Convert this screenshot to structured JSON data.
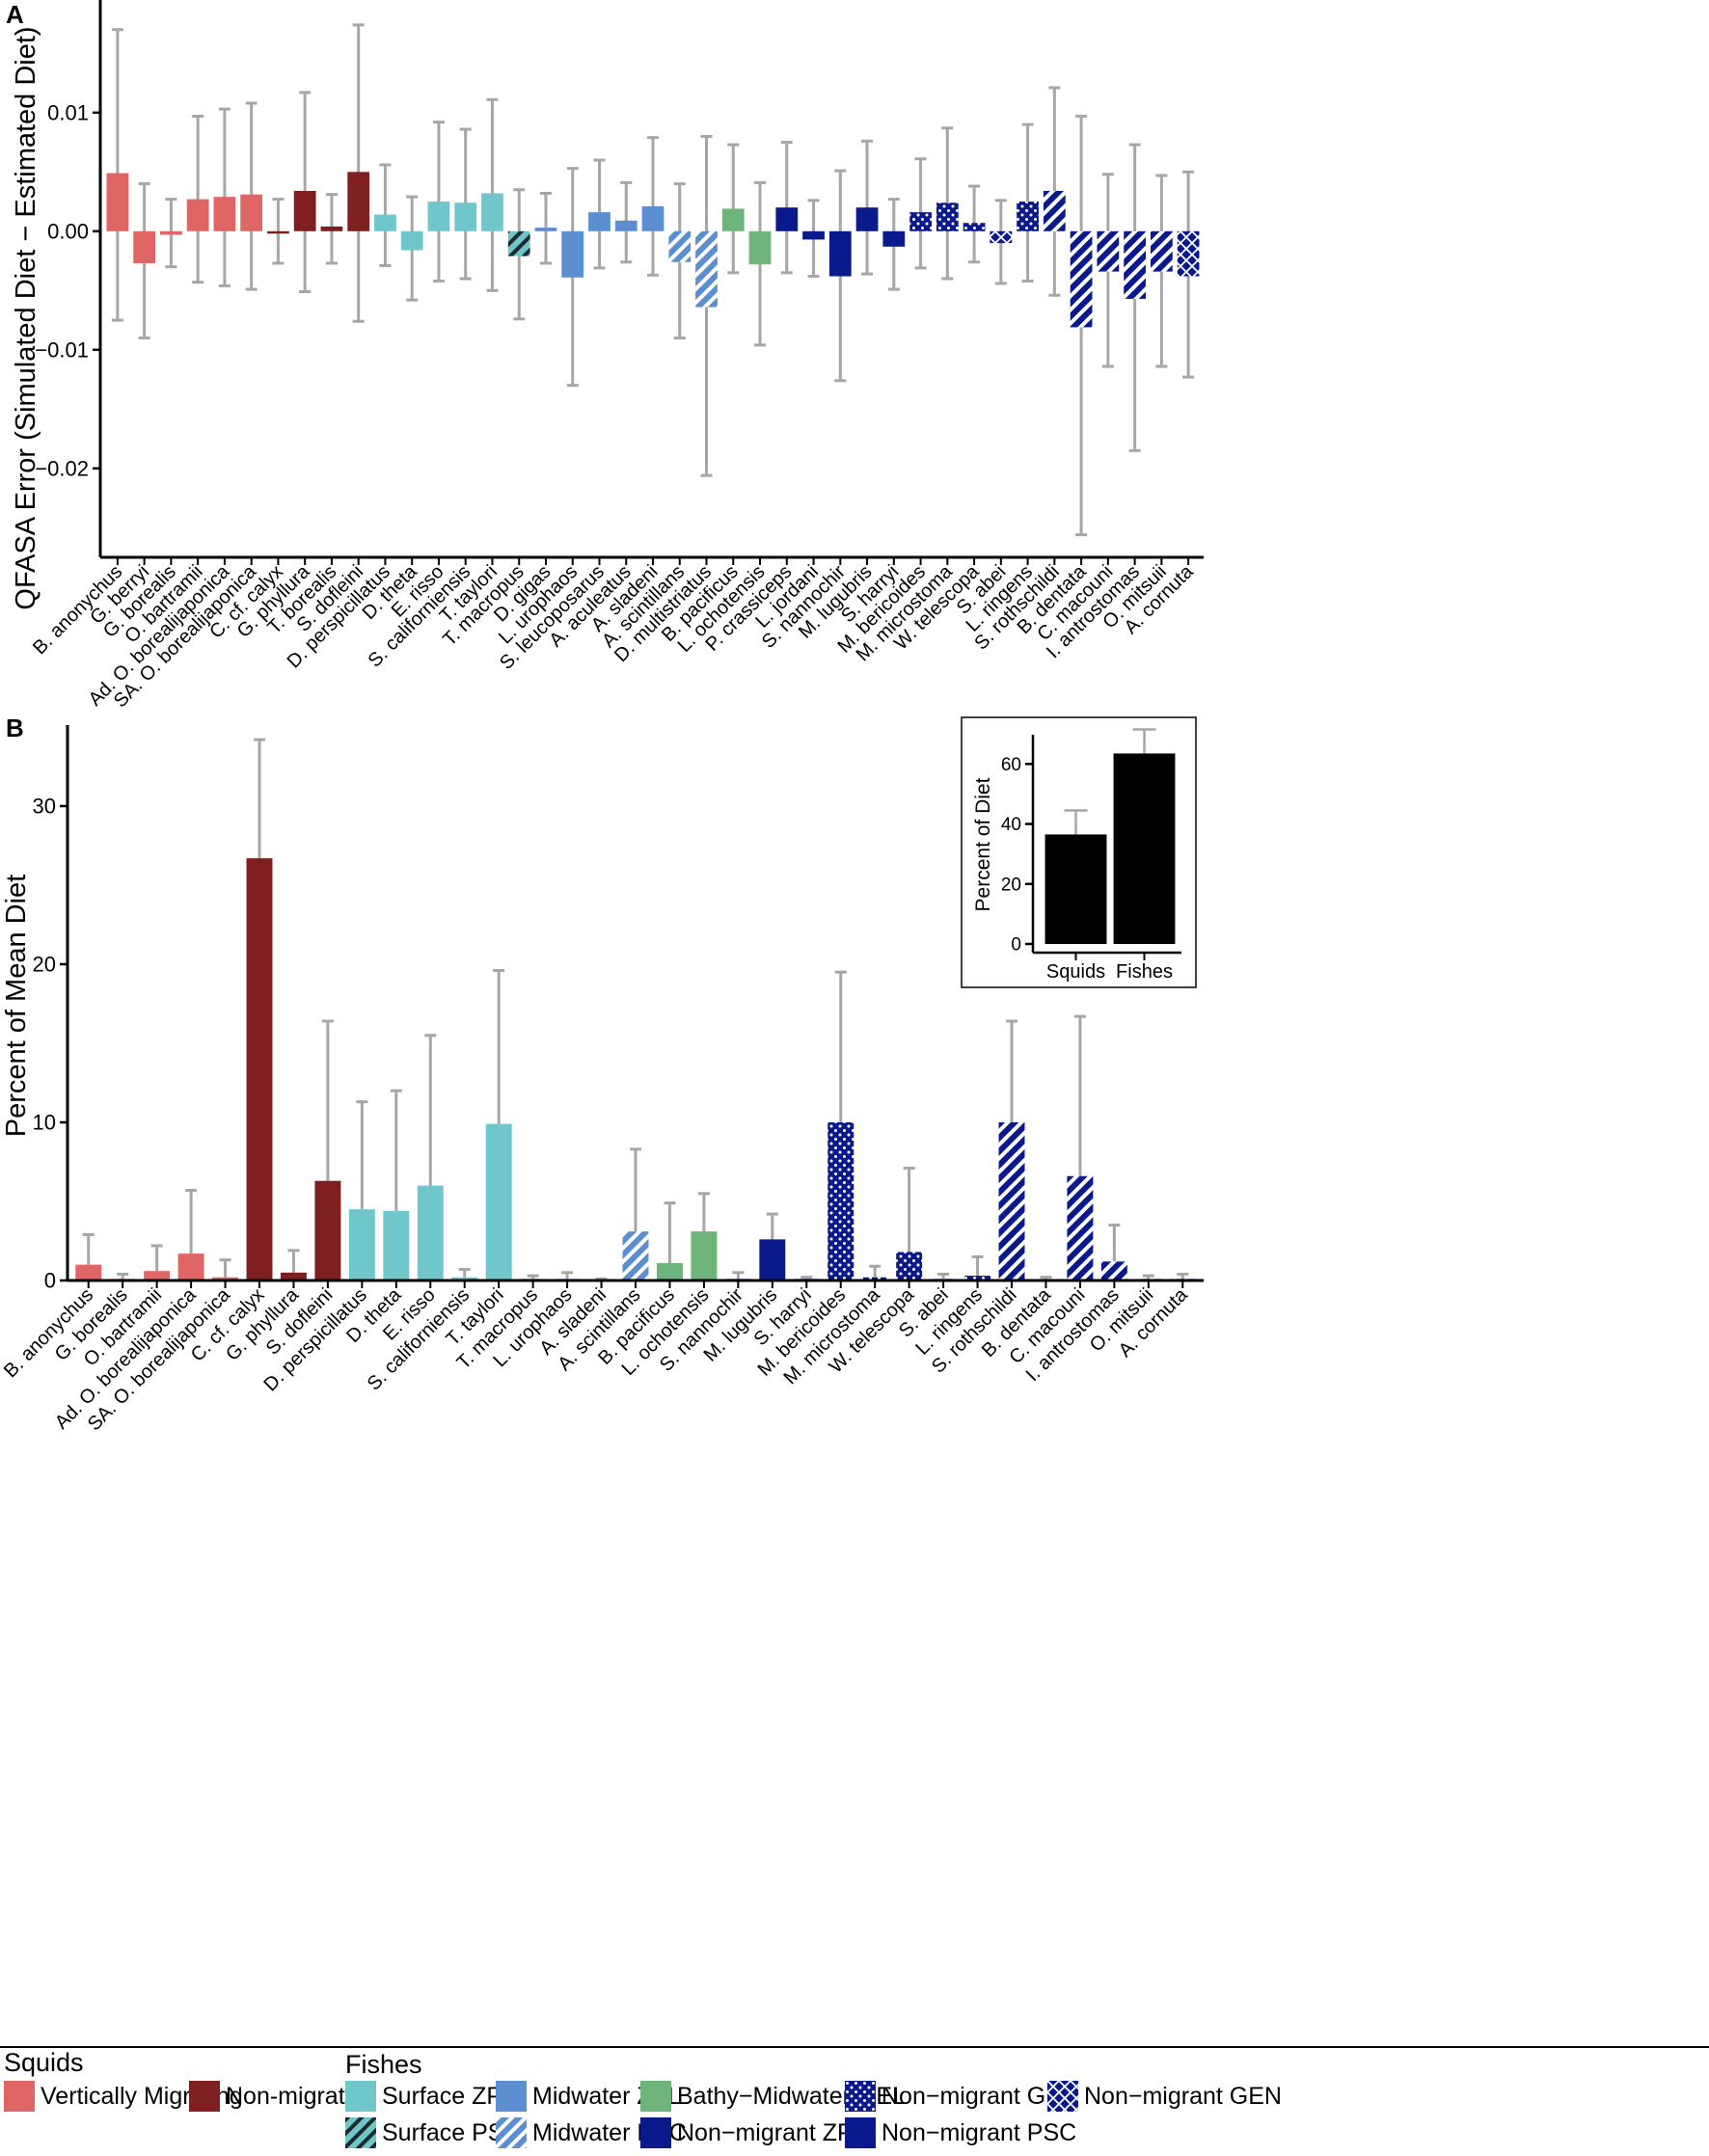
{
  "panel_labels": {
    "a": "A",
    "b": "B"
  },
  "colors": {
    "squid_vm": "#e06666",
    "squid_nm": "#7f1f1f",
    "surface": "#6fc7cc",
    "midwater": "#5b8fd1",
    "bathy": "#6db57a",
    "nonmigrant": "#0a1a8c",
    "errorbar": "#a6a6a6"
  },
  "legend": {
    "squids_title": "Squids",
    "fishes_title": "Fishes",
    "items": {
      "squid_vm": "Vertically Migrating",
      "squid_nm": "Non-migrating",
      "surface_zpl": "Surface ZPL",
      "surface_psc": "Surface PSC",
      "midwater_zpl": "Midwater ZPL",
      "midwater_psc": "Midwater PSC",
      "bathy_gel": "Bathy−Midwater GEL",
      "nonmig_zpl": "Non−migrant ZPL",
      "nonmig_gel": "Non−migrant GEL",
      "nonmig_psc": "Non−migrant PSC",
      "nonmig_gen": "Non−migrant GEN"
    }
  },
  "chart_data": [
    {
      "id": "A",
      "type": "bar",
      "ylabel": "QFASA Error (Simulated Diet − Estimated Diet)",
      "ylim": [
        -0.0275,
        0.0195
      ],
      "yticks": [
        0.01,
        0.0,
        -0.01,
        -0.02
      ],
      "ytick_labels": [
        "0.01",
        "0.00",
        "−0.01",
        "−0.02"
      ],
      "categories": [
        "B. anonychus",
        "G. berryi",
        "G. borealis",
        "O. bartramii",
        "Ad. O. borealijaponica",
        "SA. O. borealijaponica",
        "C. cf. calyx",
        "G. phyllura",
        "T. borealis",
        "S. dofleini",
        "D. perspicillatus",
        "D. theta",
        "E. risso",
        "S. californiensis",
        "T. taylori",
        "T. macropus",
        "D. gigas",
        "L. urophaos",
        "S. leucoposarus",
        "A. aculeatus",
        "A. sladeni",
        "A. scintillans",
        "D. multistriatus",
        "B. pacificus",
        "L. ochotensis",
        "P. crassiceps",
        "L. jordani",
        "S. nannochir",
        "M. lugubris",
        "S. harryi",
        "M. bericoides",
        "M. microstoma",
        "W. telescopa",
        "S. abei",
        "L. ringens",
        "S. rothschildi",
        "B. dentata",
        "C. macouni",
        "I. antrostomas",
        "O. mitsuii",
        "A. cornuta"
      ],
      "groups": [
        "squid_vm",
        "squid_vm",
        "squid_vm",
        "squid_vm",
        "squid_vm",
        "squid_vm",
        "squid_nm",
        "squid_nm",
        "squid_nm",
        "squid_nm",
        "surface_zpl",
        "surface_zpl",
        "surface_zpl",
        "surface_zpl",
        "surface_zpl",
        "surface_psc",
        "midwater_zpl",
        "midwater_zpl",
        "midwater_zpl",
        "midwater_zpl",
        "midwater_zpl",
        "midwater_psc",
        "midwater_psc",
        "bathy_gel",
        "bathy_gel",
        "nonmig_zpl",
        "nonmig_zpl",
        "nonmig_zpl",
        "nonmig_zpl",
        "nonmig_zpl",
        "nonmig_gel",
        "nonmig_gel",
        "nonmig_gel",
        "nonmig_gen",
        "nonmig_gel",
        "nonmig_psc",
        "nonmig_psc",
        "nonmig_psc",
        "nonmig_psc",
        "nonmig_psc",
        "nonmig_gen"
      ],
      "values": [
        0.0049,
        -0.0027,
        -0.0003,
        0.0027,
        0.0029,
        0.0031,
        -0.0002,
        0.0034,
        0.0004,
        0.005,
        0.0014,
        -0.0016,
        0.0025,
        0.0024,
        0.0032,
        -0.0021,
        0.0003,
        -0.0039,
        0.0016,
        0.0009,
        0.0021,
        -0.0026,
        -0.0064,
        0.0019,
        -0.0028,
        0.002,
        -0.0007,
        -0.0038,
        0.002,
        -0.0013,
        0.0016,
        0.0024,
        0.0007,
        -0.001,
        0.0025,
        0.0034,
        -0.0081,
        -0.0034,
        -0.0057,
        -0.0034,
        -0.0038
      ],
      "err_low": [
        -0.0075,
        -0.009,
        -0.003,
        -0.0043,
        -0.0046,
        -0.0049,
        -0.0027,
        -0.0051,
        -0.0027,
        -0.0076,
        -0.0029,
        -0.0058,
        -0.0042,
        -0.004,
        -0.005,
        -0.0074,
        -0.0027,
        -0.013,
        -0.0031,
        -0.0026,
        -0.0037,
        -0.009,
        -0.0206,
        -0.0035,
        -0.0096,
        -0.0035,
        -0.0038,
        -0.0126,
        -0.0036,
        -0.0049,
        -0.0031,
        -0.004,
        -0.0026,
        -0.0044,
        -0.0042,
        -0.0054,
        -0.0256,
        -0.0114,
        -0.0185,
        -0.0114,
        -0.0123
      ],
      "err_high": [
        0.017,
        0.004,
        0.0027,
        0.0097,
        0.0103,
        0.0108,
        0.0027,
        0.0117,
        0.0031,
        0.0174,
        0.0056,
        0.0029,
        0.0092,
        0.0086,
        0.0111,
        0.0035,
        0.0032,
        0.0053,
        0.006,
        0.0041,
        0.0079,
        0.004,
        0.008,
        0.0073,
        0.0041,
        0.0075,
        0.0026,
        0.0051,
        0.0076,
        0.0027,
        0.0061,
        0.0087,
        0.0038,
        0.0026,
        0.009,
        0.0121,
        0.0097,
        0.0048,
        0.0073,
        0.0047,
        0.005
      ]
    },
    {
      "id": "B",
      "type": "bar",
      "ylabel": "Percent of Mean Diet",
      "ylim": [
        0,
        35
      ],
      "yticks": [
        0,
        10,
        20,
        30
      ],
      "ytick_labels": [
        "0",
        "10",
        "20",
        "30"
      ],
      "categories": [
        "B. anonychus",
        "G. borealis",
        "O. bartramii",
        "Ad. O. borealijaponica",
        "SA. O. borealijaponica",
        "C. cf. calyx",
        "G. phyllura",
        "S. dofleini",
        "D. perspicillatus",
        "D. theta",
        "E. risso",
        "S. californiensis",
        "T. taylori",
        "T. macropus",
        "L. urophaos",
        "A. sladeni",
        "A. scintillans",
        "B. pacificus",
        "L. ochotensis",
        "S. nannochir",
        "M. lugubris",
        "S. harryi",
        "M. bericoides",
        "M. microstoma",
        "W. telescopa",
        "S. abei",
        "L. ringens",
        "S. rothschildi",
        "B. dentata",
        "C. macouni",
        "I. antrostomas",
        "O. mitsuii",
        "A. cornuta"
      ],
      "groups": [
        "squid_vm",
        "squid_vm",
        "squid_vm",
        "squid_vm",
        "squid_vm",
        "squid_nm",
        "squid_nm",
        "squid_nm",
        "surface_zpl",
        "surface_zpl",
        "surface_zpl",
        "surface_zpl",
        "surface_zpl",
        "surface_psc",
        "midwater_zpl",
        "midwater_zpl",
        "midwater_psc",
        "bathy_gel",
        "bathy_gel",
        "nonmig_zpl",
        "nonmig_zpl",
        "nonmig_zpl",
        "nonmig_gel",
        "nonmig_gel",
        "nonmig_gel",
        "nonmig_gen",
        "nonmig_gel",
        "nonmig_psc",
        "nonmig_psc",
        "nonmig_psc",
        "nonmig_psc",
        "nonmig_psc",
        "nonmig_gen"
      ],
      "values": [
        1.0,
        0.1,
        0.6,
        1.7,
        0.2,
        26.7,
        0.5,
        6.3,
        4.5,
        4.4,
        6.0,
        0.2,
        9.9,
        0.1,
        0.1,
        0.05,
        3.1,
        1.1,
        3.1,
        0.1,
        2.6,
        0.1,
        10.0,
        0.2,
        1.8,
        0.1,
        0.3,
        10.0,
        0.05,
        6.6,
        1.2,
        0.1,
        0.1
      ],
      "err_high": [
        2.9,
        0.4,
        2.2,
        5.7,
        1.3,
        34.2,
        1.9,
        16.4,
        11.3,
        12.0,
        15.5,
        0.7,
        19.6,
        0.3,
        0.5,
        0.1,
        8.3,
        4.9,
        5.5,
        0.5,
        4.2,
        0.2,
        19.5,
        0.9,
        7.1,
        0.4,
        1.5,
        16.4,
        0.2,
        16.7,
        3.5,
        0.3,
        0.4
      ]
    },
    {
      "id": "B-inset",
      "type": "bar",
      "ylabel": "Percent of Diet",
      "ylim": [
        0,
        72
      ],
      "yticks": [
        0,
        20,
        40,
        60
      ],
      "ytick_labels": [
        "0",
        "20",
        "40",
        "60"
      ],
      "categories": [
        "Squids",
        "Fishes"
      ],
      "values": [
        36.5,
        63.5
      ],
      "err_high": [
        44.5,
        71.5
      ]
    }
  ]
}
